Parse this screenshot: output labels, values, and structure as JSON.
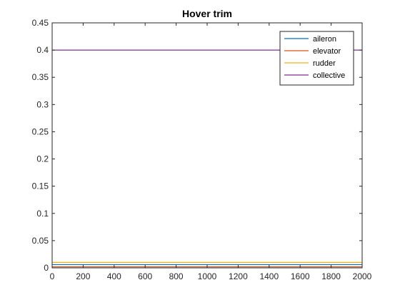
{
  "chart_data": {
    "type": "line",
    "title": "Hover trim",
    "xlabel": "",
    "ylabel": "",
    "xlim": [
      0,
      2000
    ],
    "ylim": [
      0,
      0.45
    ],
    "x_ticks": [
      "0",
      "200",
      "400",
      "600",
      "800",
      "1000",
      "1200",
      "1400",
      "1600",
      "1800",
      "2000"
    ],
    "y_ticks": [
      "0",
      "0.05",
      "0.1",
      "0.15",
      "0.2",
      "0.25",
      "0.3",
      "0.35",
      "0.4",
      "0.45"
    ],
    "grid": false,
    "legend_position": "top-right",
    "series": [
      {
        "name": "aileron",
        "color": "#0072bd",
        "x": [
          0,
          2000
        ],
        "y": [
          0.006,
          0.006
        ]
      },
      {
        "name": "elevator",
        "color": "#d95319",
        "x": [
          0,
          2000
        ],
        "y": [
          0.002,
          0.002
        ]
      },
      {
        "name": "rudder",
        "color": "#edb120",
        "x": [
          0,
          2000
        ],
        "y": [
          0.01,
          0.01
        ]
      },
      {
        "name": "collective",
        "color": "#7e2f8e",
        "x": [
          0,
          2000
        ],
        "y": [
          0.4,
          0.4
        ]
      }
    ]
  }
}
